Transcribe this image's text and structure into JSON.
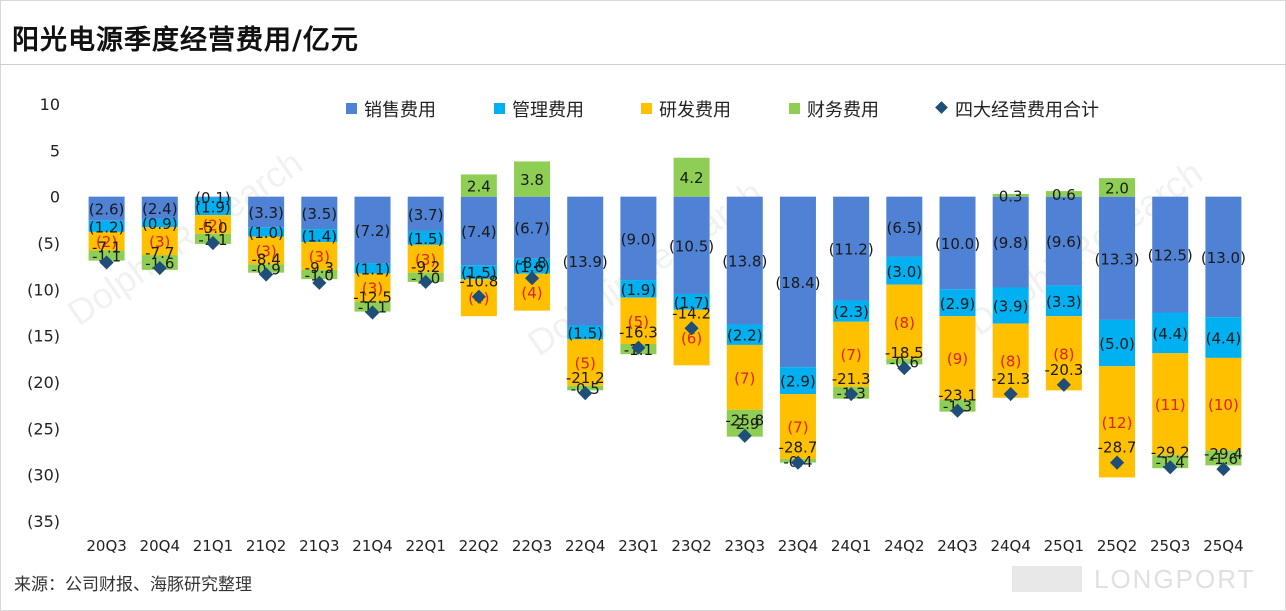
{
  "title": "阳光电源季度经营费用/亿元",
  "source": "来源：公司财报、海豚研究整理",
  "brand": "LONGPORT",
  "watermark": "DolphinResearch",
  "colors": {
    "sales": "#4f81d4",
    "admin": "#00b0f0",
    "rd": "#ffc000",
    "fin": "#8fce54",
    "total": "#1f4e79",
    "label_red": "#e02020",
    "label_dark": "#1a1a1a"
  },
  "chart_data": {
    "type": "bar",
    "stacked": true,
    "categories": [
      "20Q3",
      "20Q4",
      "21Q1",
      "21Q2",
      "21Q3",
      "21Q4",
      "22Q1",
      "22Q2",
      "22Q3",
      "22Q4",
      "23Q1",
      "23Q2",
      "23Q3",
      "23Q4",
      "24Q1",
      "24Q2",
      "24Q3",
      "24Q4",
      "25Q1",
      "25Q2",
      "25Q3",
      "25Q4"
    ],
    "ylim": [
      -35,
      10
    ],
    "yticks": [
      10,
      5,
      0,
      -5,
      -10,
      -15,
      -20,
      -25,
      -30,
      -35
    ],
    "ytick_labels": [
      "10",
      "5",
      "0",
      "(5)",
      "(10)",
      "(15)",
      "(20)",
      "(25)",
      "(30)",
      "(35)"
    ],
    "legend_position": "top",
    "series": [
      {
        "name": "销售费用",
        "values": [
          -2.6,
          -2.4,
          -0.1,
          -3.3,
          -3.5,
          -7.2,
          -3.7,
          -7.4,
          -6.7,
          -13.9,
          -9.0,
          -10.5,
          -13.8,
          -18.4,
          -11.2,
          -6.5,
          -10.0,
          -9.8,
          -9.6,
          -13.3,
          -12.5,
          -13.0
        ],
        "labels": [
          "(2.6)",
          "(2.4)",
          "(0.1)",
          "(3.3)",
          "(3.5)",
          "(7.2)",
          "(3.7)",
          "(7.4)",
          "(6.7)",
          "(13.9)",
          "(9.0)",
          "(10.5)",
          "(13.8)",
          "(18.4)",
          "(11.2)",
          "(6.5)",
          "(10.0)",
          "(9.8)",
          "(9.6)",
          "(13.3)",
          "(12.5)",
          "(13.0)"
        ]
      },
      {
        "name": "管理费用",
        "values": [
          -1.2,
          -0.9,
          -1.9,
          -1.0,
          -1.4,
          -1.1,
          -1.5,
          -1.5,
          -1.6,
          -1.5,
          -1.9,
          -1.7,
          -2.2,
          -2.9,
          -2.3,
          -3.0,
          -2.9,
          -3.9,
          -3.3,
          -5.0,
          -4.4,
          -4.4
        ],
        "labels": [
          "(1.2)",
          "(0.9)",
          "(1.9)",
          "(1.0)",
          "(1.4)",
          "(1.1)",
          "(1.5)",
          "(1.5)",
          "(1.6)",
          "(1.5)",
          "(1.9)",
          "(1.7)",
          "(2.2)",
          "(2.9)",
          "(2.3)",
          "(3.0)",
          "(2.9)",
          "(3.9)",
          "(3.3)",
          "(5.0)",
          "(4.4)",
          "(4.4)"
        ]
      },
      {
        "name": "研发费用",
        "values": [
          -2.0,
          -3.0,
          -2.0,
          -3.0,
          -3.0,
          -3.0,
          -3.0,
          -4.0,
          -4.0,
          -5.0,
          -5.0,
          -6.0,
          -7.0,
          -7.0,
          -7.0,
          -8.0,
          -9.0,
          -8.0,
          -8.0,
          -12.0,
          -11.0,
          -10.0
        ],
        "labels": [
          "(2)",
          "(3)",
          "(2)",
          "(3)",
          "(3)",
          "(3)",
          "(3)",
          "(4)",
          "(4)",
          "(5)",
          "(5)",
          "(6)",
          "(7)",
          "(7)",
          "(7)",
          "(8)",
          "(9)",
          "(8)",
          "(8)",
          "(12)",
          "(11)",
          "(10)"
        ]
      },
      {
        "name": "财务费用",
        "values": [
          -1.1,
          -1.6,
          -1.1,
          -0.9,
          -1.0,
          -1.1,
          -1.0,
          2.4,
          3.8,
          -0.5,
          -1.1,
          4.2,
          -2.9,
          -0.4,
          -1.3,
          -0.6,
          -1.3,
          0.3,
          0.6,
          2.0,
          -1.4,
          -1.6
        ],
        "labels": [
          "-1.1",
          "-1.6",
          "-1.1",
          "-0.9",
          "-1.0",
          "-1.1",
          "-1.0",
          "2.4",
          "3.8",
          "-0.5",
          "-1.1",
          "4.2",
          "-2.9",
          "-0.4",
          "-1.3",
          "-0.6",
          "-1.3",
          "0.3",
          "0.6",
          "2.0",
          "-1.4",
          "-1.6"
        ]
      },
      {
        "name": "四大经营费用合计",
        "type": "scatter",
        "values": [
          -7.1,
          -7.7,
          -5.0,
          -8.4,
          -9.3,
          -12.5,
          -9.2,
          -10.8,
          -8.8,
          -21.2,
          -16.3,
          -14.2,
          -25.8,
          -28.7,
          -21.3,
          -18.5,
          -23.1,
          -21.3,
          -20.3,
          -28.7,
          -29.2,
          -29.4
        ],
        "labels": [
          "-7.1",
          "-7.7",
          "-5.0",
          "-8.4",
          "-9.3",
          "-12.5",
          "-9.2",
          "-10.8",
          "-8.8",
          "-21.2",
          "-16.3",
          "-14.2",
          "-25.8",
          "-28.7",
          "-21.3",
          "-18.5",
          "-23.1",
          "-21.3",
          "-20.3",
          "-28.7",
          "-29.2",
          "-29.4"
        ]
      }
    ]
  }
}
